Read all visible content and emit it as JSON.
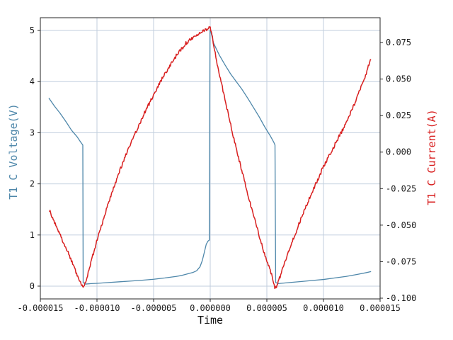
{
  "chart_data": {
    "type": "line",
    "title": "",
    "xlabel": "Time",
    "ylabel_left": "T1 C Voltage(V)",
    "ylabel_right": "T1 C Current(A)",
    "grid": true,
    "legend": "none",
    "xlim": [
      -1.5e-05,
      1.5e-05
    ],
    "ylim_left": [
      -0.25,
      5.25
    ],
    "ylim_right": [
      -0.1005,
      0.092
    ],
    "x_ticks": [
      -1.5e-05,
      -1e-05,
      -5e-06,
      0,
      5e-06,
      1e-05,
      1.5e-05
    ],
    "x_tick_labels": [
      "-0.000015",
      "-0.000010",
      "-0.000005",
      "0.000000",
      "0.000005",
      "0.000010",
      "0.000015"
    ],
    "y_ticks_left": [
      0,
      1,
      2,
      3,
      4,
      5
    ],
    "y_tick_labels_left": [
      "0",
      "1",
      "2",
      "3",
      "4",
      "5"
    ],
    "y_ticks_right": [
      0.075,
      0.05,
      0.025,
      0,
      -0.025,
      -0.05,
      -0.075,
      -0.1
    ],
    "y_tick_labels_right": [
      "0.075",
      "0.050",
      "0.025",
      "0.000",
      "-0.025",
      "-0.050",
      "-0.075",
      "-0.100"
    ],
    "colors": {
      "voltage": "#4e87aa",
      "current": "#d81f1f",
      "grid": "#c0cedd",
      "spine": "#262626",
      "tick_text": "#1a1a1a",
      "background": "#ffffff"
    },
    "series": [
      {
        "name": "T1 C Voltage (V)",
        "axis": "left",
        "color_key": "voltage",
        "stroke_width": 1.3,
        "x_us": [
          -14.25,
          -13.75,
          -13.25,
          -12.75,
          -12.25,
          -11.75,
          -11.45,
          -11.25,
          -11.22,
          -11.0,
          -10.5,
          -10.0,
          -9.0,
          -8.0,
          -7.0,
          -6.0,
          -5.0,
          -4.0,
          -3.0,
          -2.5,
          -2.0,
          -1.5,
          -1.2,
          -0.9,
          -0.7,
          -0.5,
          -0.35,
          -0.2,
          -0.08,
          -0.02,
          0.05,
          0.3,
          0.8,
          1.3,
          1.8,
          2.3,
          2.8,
          3.3,
          3.8,
          4.3,
          4.8,
          5.3,
          5.6,
          5.72,
          5.78,
          6.0,
          6.5,
          7.0,
          8.0,
          9.0,
          10.0,
          11.0,
          12.0,
          13.0,
          13.7,
          14.2
        ],
        "y": [
          3.68,
          3.52,
          3.38,
          3.22,
          3.05,
          2.92,
          2.82,
          2.76,
          0.07,
          0.04,
          0.05,
          0.055,
          0.07,
          0.085,
          0.1,
          0.115,
          0.135,
          0.16,
          0.19,
          0.21,
          0.24,
          0.27,
          0.3,
          0.38,
          0.5,
          0.68,
          0.82,
          0.88,
          0.9,
          5.0,
          4.98,
          4.75,
          4.52,
          4.33,
          4.15,
          4.0,
          3.85,
          3.68,
          3.5,
          3.32,
          3.12,
          2.94,
          2.82,
          2.76,
          0.07,
          0.05,
          0.06,
          0.07,
          0.09,
          0.11,
          0.13,
          0.16,
          0.19,
          0.23,
          0.26,
          0.285
        ]
      },
      {
        "name": "T1 C Current (A)",
        "axis": "right",
        "color_key": "current",
        "stroke_width": 1.5,
        "noise_amplitude": 0.0012,
        "x_us": [
          -14.2,
          -13.8,
          -13.4,
          -13.0,
          -12.6,
          -12.2,
          -11.8,
          -11.5,
          -11.3,
          -11.22,
          -11.0,
          -10.6,
          -10.2,
          -9.8,
          -9.4,
          -9.0,
          -8.6,
          -8.2,
          -7.8,
          -7.4,
          -7.0,
          -6.6,
          -6.2,
          -5.8,
          -5.4,
          -5.0,
          -4.6,
          -4.2,
          -3.8,
          -3.4,
          -3.0,
          -2.6,
          -2.2,
          -1.8,
          -1.4,
          -1.0,
          -0.6,
          -0.2,
          0.0,
          0.2,
          0.5,
          0.9,
          1.3,
          1.7,
          2.1,
          2.5,
          2.9,
          3.3,
          3.7,
          4.1,
          4.5,
          4.9,
          5.3,
          5.6,
          5.75,
          6.0,
          6.4,
          6.8,
          7.2,
          7.6,
          8.0,
          8.4,
          8.8,
          9.2,
          9.6,
          10.0,
          10.4,
          10.8,
          11.2,
          11.6,
          12.0,
          12.4,
          12.8,
          13.2,
          13.6,
          14.2
        ],
        "y": [
          -0.04,
          -0.047,
          -0.054,
          -0.061,
          -0.068,
          -0.075,
          -0.083,
          -0.088,
          -0.092,
          -0.093,
          -0.089,
          -0.077,
          -0.066,
          -0.055,
          -0.045,
          -0.035,
          -0.026,
          -0.017,
          -0.009,
          -0.001,
          0.006,
          0.013,
          0.02,
          0.027,
          0.033,
          0.039,
          0.045,
          0.051,
          0.056,
          0.061,
          0.066,
          0.07,
          0.074,
          0.077,
          0.079,
          0.0815,
          0.0835,
          0.0845,
          0.085,
          0.078,
          0.065,
          0.05,
          0.036,
          0.022,
          0.009,
          -0.004,
          -0.016,
          -0.028,
          -0.04,
          -0.051,
          -0.062,
          -0.072,
          -0.081,
          -0.089,
          -0.094,
          -0.089,
          -0.08,
          -0.071,
          -0.062,
          -0.054,
          -0.046,
          -0.038,
          -0.031,
          -0.024,
          -0.017,
          -0.01,
          -0.004,
          0.002,
          0.008,
          0.014,
          0.02,
          0.027,
          0.034,
          0.042,
          0.05,
          0.064
        ]
      }
    ]
  }
}
